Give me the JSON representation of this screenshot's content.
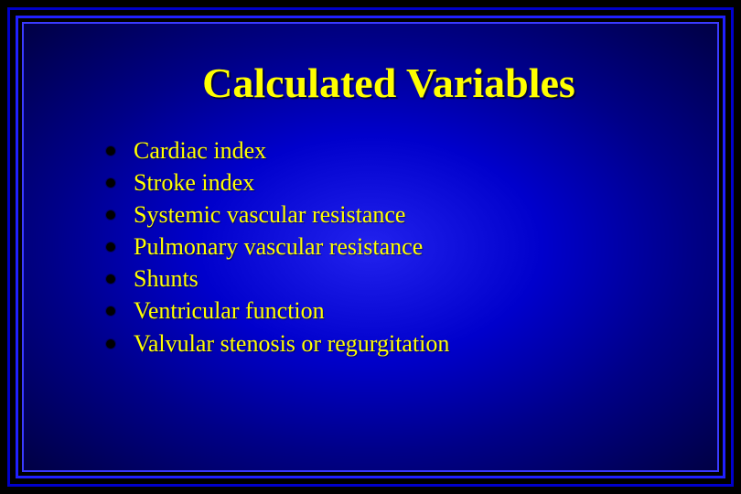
{
  "slide": {
    "title": "Calculated Variables",
    "title_color": "#ffff00",
    "title_fontsize": 46,
    "bullet_color": "#ffff00",
    "bullet_fontsize": 26,
    "bullet_marker_color": "#000000",
    "background_gradient": [
      "#2222ee",
      "#0000cc",
      "#000088",
      "#000044"
    ],
    "border_colors": [
      "#0000cc",
      "#2020ff",
      "#3a3aff"
    ],
    "bullets": [
      "Cardiac index",
      "Stroke index",
      "Systemic vascular resistance",
      "Pulmonary vascular resistance",
      " Shunts",
      "Ventricular function",
      "Valvular stenosis or regurgitation"
    ]
  }
}
